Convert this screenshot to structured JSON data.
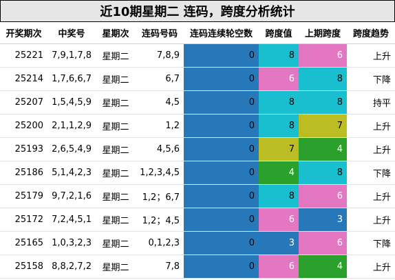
{
  "title": "近10期星期二 连码，跨度分析统计",
  "headers": [
    "开奖期次",
    "中奖号",
    "星期次",
    "连码号码",
    "连码连续轮空数",
    "跨度值",
    "上期跨度",
    "跨度趋势"
  ],
  "colors": {
    "blue": "#2678b8",
    "cyan": "#19becf",
    "pink": "#e377c2",
    "green": "#2ca02c",
    "olive": "#bcbd22",
    "white": "#ffffff",
    "dark": "#000000"
  },
  "rows": [
    {
      "issue": "25221",
      "numbers": "7,9,1,7,8",
      "weekday": "星期二",
      "consec": "7,8,9",
      "gap": "0",
      "span": "8",
      "span_color": "cyan",
      "prev": "6",
      "prev_color": "pink",
      "trend": "上升"
    },
    {
      "issue": "25214",
      "numbers": "1,7,6,6,7",
      "weekday": "星期二",
      "consec": "6,7",
      "gap": "0",
      "span": "6",
      "span_color": "pink",
      "prev": "8",
      "prev_color": "cyan",
      "trend": "下降"
    },
    {
      "issue": "25207",
      "numbers": "1,5,4,5,9",
      "weekday": "星期二",
      "consec": "4,5",
      "gap": "0",
      "span": "8",
      "span_color": "cyan",
      "prev": "8",
      "prev_color": "cyan",
      "trend": "持平"
    },
    {
      "issue": "25200",
      "numbers": "2,1,1,2,9",
      "weekday": "星期二",
      "consec": "1,2",
      "gap": "0",
      "span": "8",
      "span_color": "cyan",
      "prev": "7",
      "prev_color": "olive",
      "trend": "上升"
    },
    {
      "issue": "25193",
      "numbers": "2,6,5,4,9",
      "weekday": "星期二",
      "consec": "4,5,6",
      "gap": "0",
      "span": "7",
      "span_color": "olive",
      "prev": "4",
      "prev_color": "green",
      "trend": "上升"
    },
    {
      "issue": "25186",
      "numbers": "5,1,4,2,3",
      "weekday": "星期二",
      "consec": "1,2,3,4,5",
      "gap": "0",
      "span": "4",
      "span_color": "green",
      "prev": "8",
      "prev_color": "cyan",
      "trend": "下降"
    },
    {
      "issue": "25179",
      "numbers": "9,7,2,1,6",
      "weekday": "星期二",
      "consec": "1,2；6,7",
      "gap": "0",
      "span": "8",
      "span_color": "cyan",
      "prev": "6",
      "prev_color": "pink",
      "trend": "上升"
    },
    {
      "issue": "25172",
      "numbers": "7,2,4,5,1",
      "weekday": "星期二",
      "consec": "1,2；4,5",
      "gap": "0",
      "span": "6",
      "span_color": "pink",
      "prev": "3",
      "prev_color": "blue",
      "trend": "上升"
    },
    {
      "issue": "25165",
      "numbers": "1,0,3,2,3",
      "weekday": "星期二",
      "consec": "0,1,2,3",
      "gap": "0",
      "span": "3",
      "span_color": "blue",
      "prev": "6",
      "prev_color": "pink",
      "trend": "下降"
    },
    {
      "issue": "25158",
      "numbers": "8,8,2,7,2",
      "weekday": "星期二",
      "consec": "7,8",
      "gap": "0",
      "span": "6",
      "span_color": "pink",
      "prev": "4",
      "prev_color": "green",
      "trend": "上升"
    }
  ]
}
